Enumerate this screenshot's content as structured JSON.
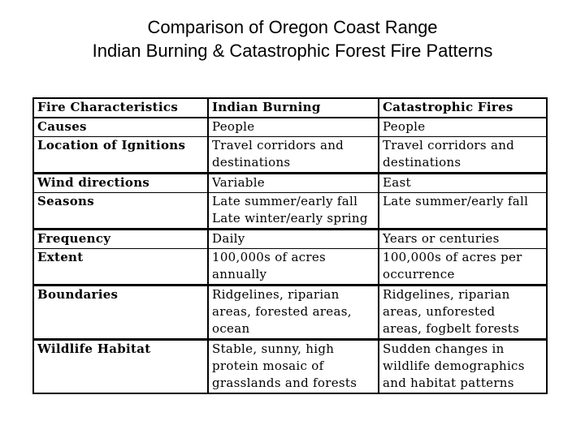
{
  "title": {
    "line1": "Comparison of Oregon Coast Range",
    "line2": "Indian Burning & Catastrophic Forest Fire Patterns"
  },
  "table": {
    "headers": [
      "Fire Characteristics",
      "Indian Burning",
      "Catastrophic Fires"
    ],
    "rows": [
      {
        "label": "Causes",
        "indian": "People",
        "catastrophic": "People"
      },
      {
        "label": "Location of Ignitions",
        "indian": "Travel corridors and\ndestinations",
        "catastrophic": "Travel corridors and\ndestinations"
      },
      {
        "label": "Wind directions",
        "indian": "Variable",
        "catastrophic": "East"
      },
      {
        "label": "Seasons",
        "indian": "Late summer/early fall\nLate winter/early spring",
        "catastrophic": "Late summer/early fall"
      },
      {
        "label": "Frequency",
        "indian": "Daily",
        "catastrophic": "Years or centuries"
      },
      {
        "label": "Extent",
        "indian": "100,000s of acres\nannually",
        "catastrophic": "100,000s of acres per\noccurrence"
      },
      {
        "label": "Boundaries",
        "indian": "Ridgelines, riparian\nareas, forested areas,\nocean",
        "catastrophic": "Ridgelines, riparian\nareas, unforested\nareas, fogbelt forests"
      },
      {
        "label": "Wildlife Habitat",
        "indian": "Stable, sunny, high\nprotein mosaic of\ngrasslands and forests",
        "catastrophic": "Sudden changes in\nwildlife demographics\nand habitat patterns"
      }
    ]
  }
}
